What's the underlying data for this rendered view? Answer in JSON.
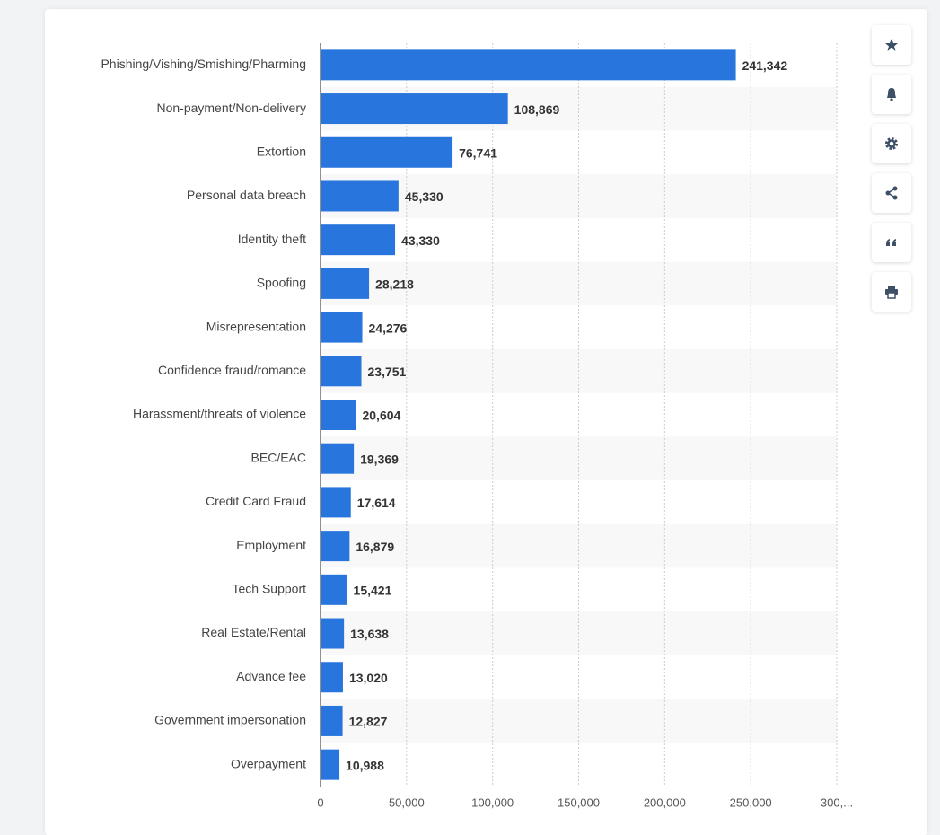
{
  "chart_data": {
    "type": "bar",
    "orientation": "horizontal",
    "categories": [
      "Phishing/Vishing/Smishing/Pharming",
      "Non-payment/Non-delivery",
      "Extortion",
      "Personal data breach",
      "Identity theft",
      "Spoofing",
      "Misrepresentation",
      "Confidence fraud/romance",
      "Harassment/threats of violence",
      "BEC/EAC",
      "Credit Card Fraud",
      "Employment",
      "Tech Support",
      "Real Estate/Rental",
      "Advance fee",
      "Government impersonation",
      "Overpayment"
    ],
    "values": [
      241342,
      108869,
      76741,
      45330,
      43330,
      28218,
      24276,
      23751,
      20604,
      19369,
      17614,
      16879,
      15421,
      13638,
      13020,
      12827,
      10988
    ],
    "value_labels": [
      "241,342",
      "108,869",
      "76,741",
      "45,330",
      "43,330",
      "28,218",
      "24,276",
      "23,751",
      "20,604",
      "19,369",
      "17,614",
      "16,879",
      "15,421",
      "13,638",
      "13,020",
      "12,827",
      "10,988"
    ],
    "color": "#2876dd",
    "xlim": [
      0,
      300000
    ],
    "xticks": [
      0,
      {
        "value": 50000,
        "label": "50,000"
      },
      {
        "value": 100000,
        "label": "100,000"
      },
      {
        "value": 150000,
        "label": "150,000"
      },
      {
        "value": 200000,
        "label": "200,000"
      },
      {
        "value": 250000,
        "label": "250,000"
      },
      {
        "value": 300000,
        "label": "300,..."
      }
    ],
    "grid": true
  }
}
